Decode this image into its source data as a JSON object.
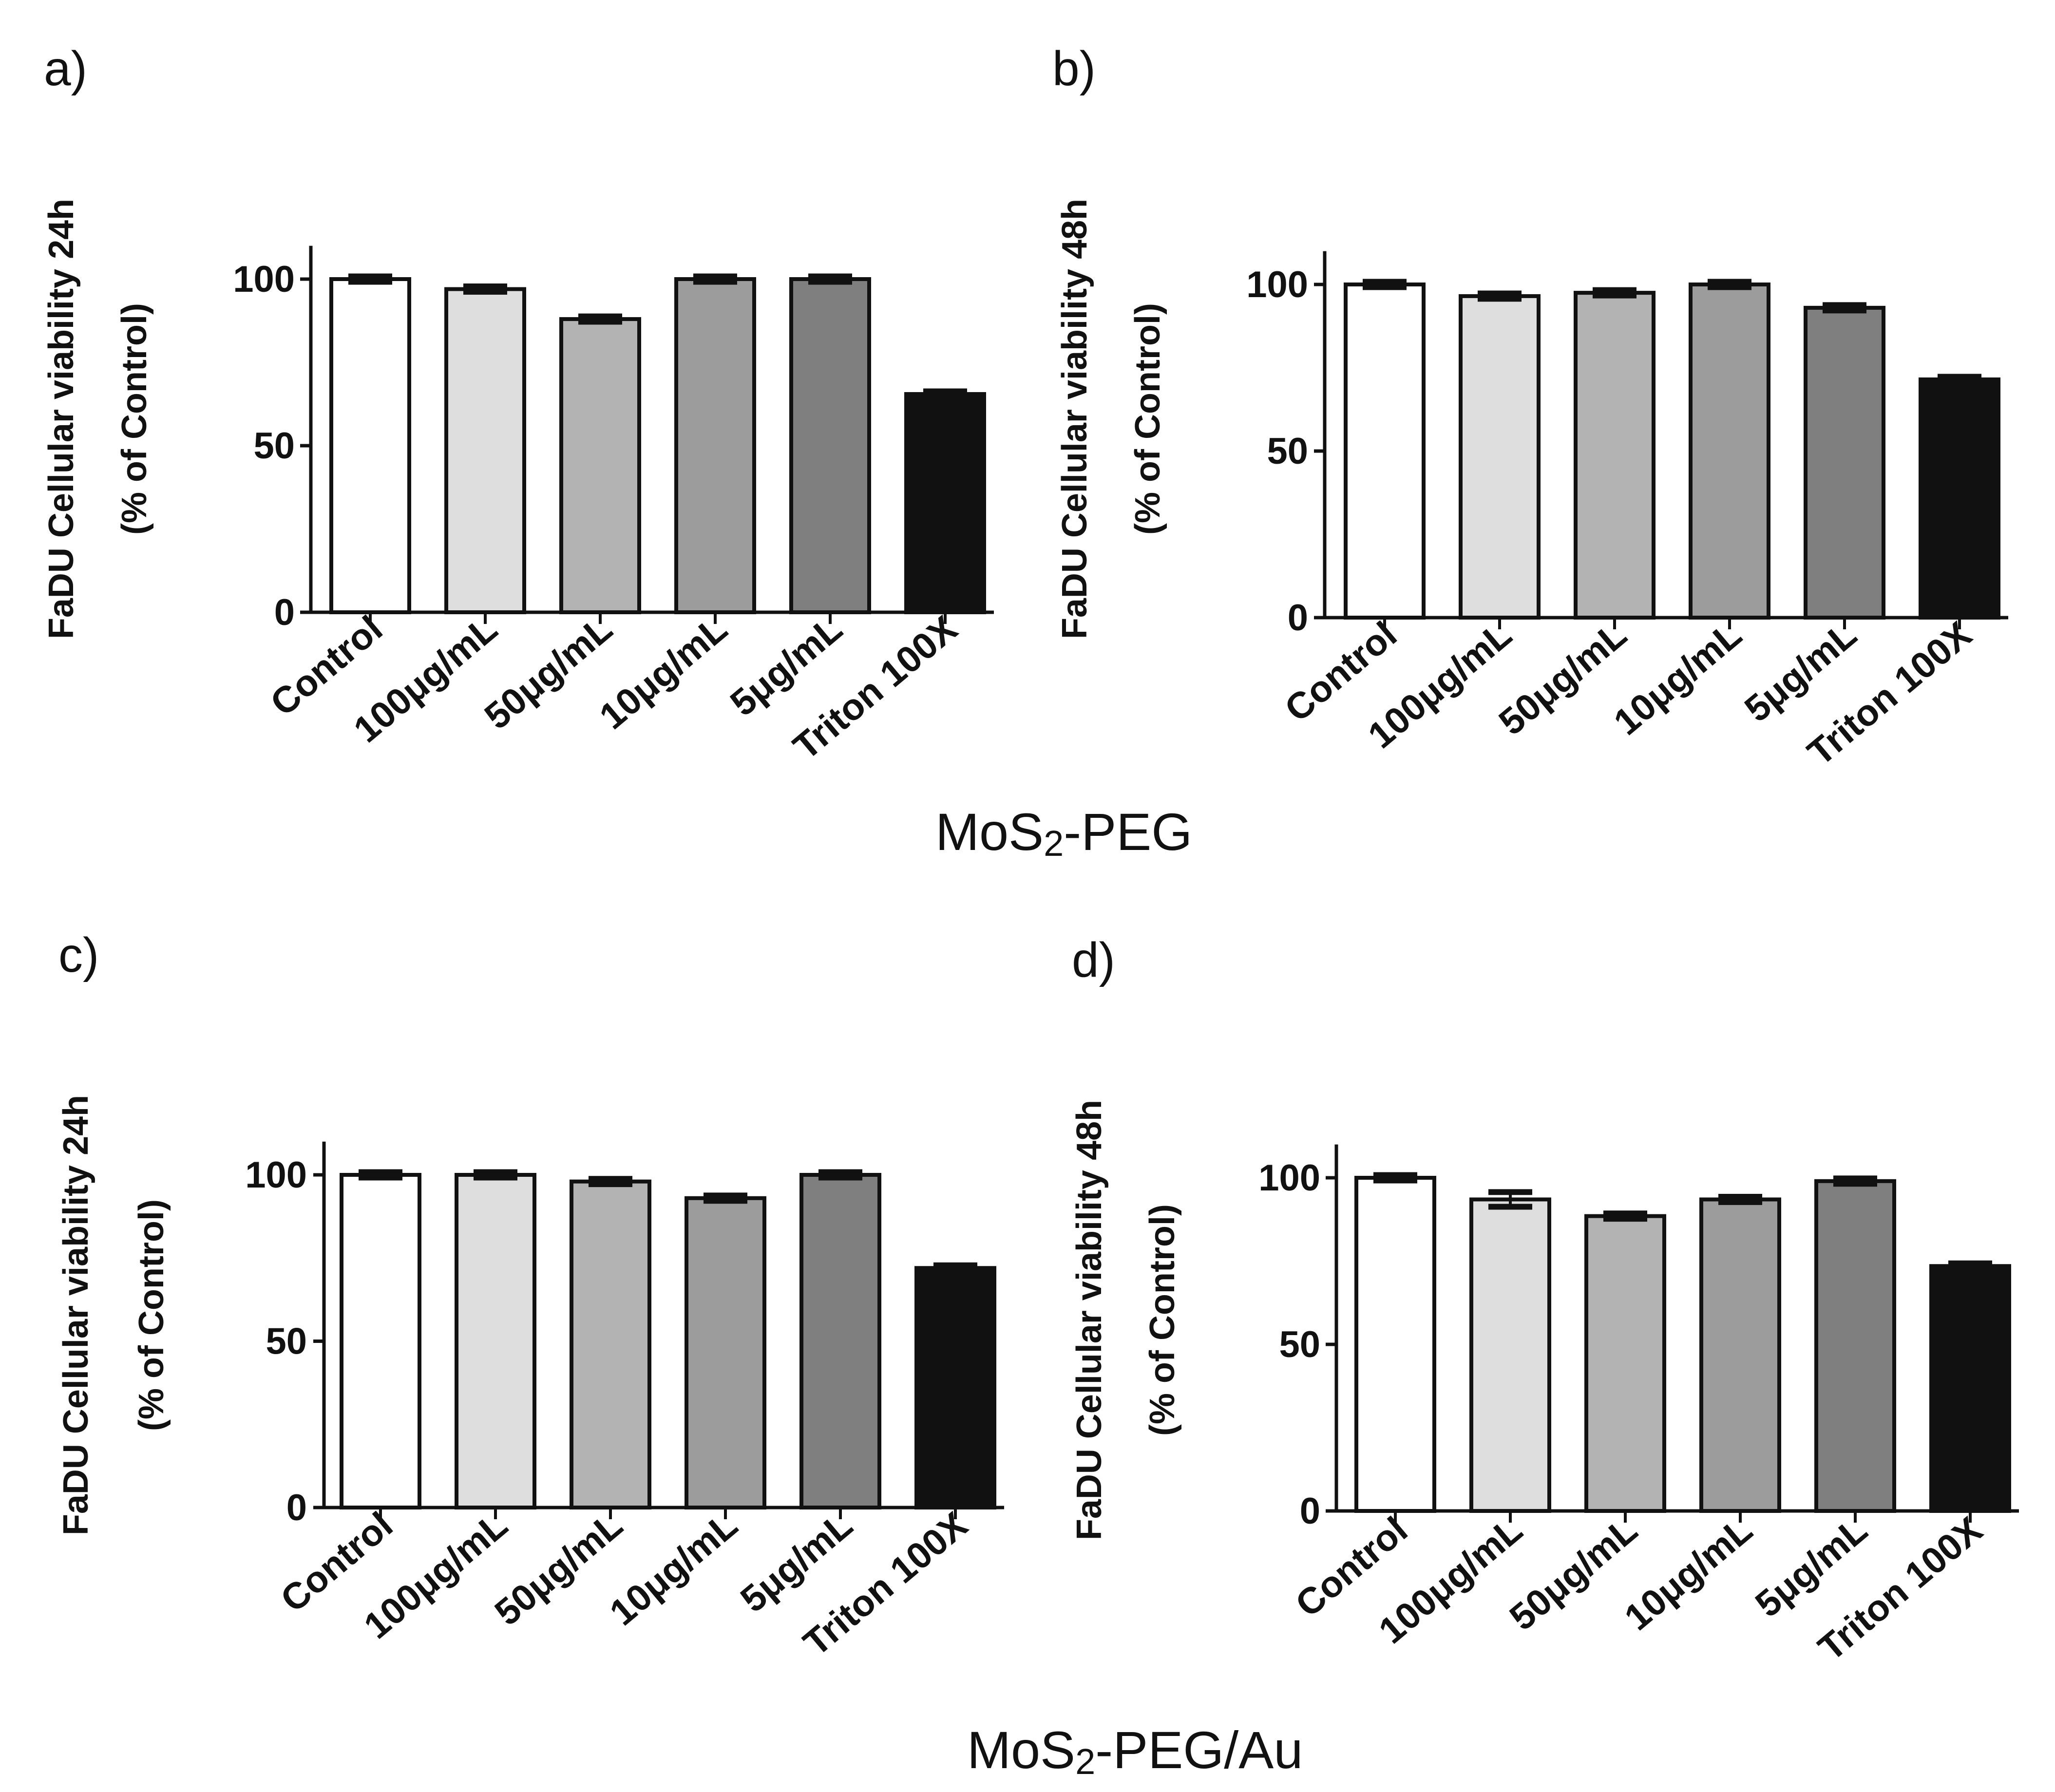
{
  "figure": {
    "group_labels": [
      {
        "main": "MoS",
        "sub": "2",
        "rest": "-PEG"
      },
      {
        "main": "MoS",
        "sub": "2",
        "rest": "-PEG/Au"
      }
    ]
  },
  "colors": {
    "bars": [
      "#ffffff",
      "#dedede",
      "#b3b3b3",
      "#9c9c9c",
      "#7f7f7f",
      "#111111"
    ],
    "stroke": "#111111"
  },
  "chart_data": [
    {
      "panel": "a)",
      "type": "bar",
      "title": "",
      "xlabel": "",
      "ylabel_lines": [
        "FaDU Cellular viability 24h",
        "(% of Control)"
      ],
      "categories": [
        "Control",
        "100μg/mL",
        "50μg/mL",
        "10μg/mL",
        "5μg/mL",
        "Triton 100X"
      ],
      "values": [
        100,
        97,
        88,
        100,
        100,
        65.5
      ],
      "errors": [
        0.8,
        0.8,
        0.8,
        0.8,
        0.8,
        0.8
      ],
      "yticks": [
        0,
        50,
        100
      ],
      "ylim": [
        0,
        110
      ]
    },
    {
      "panel": "b)",
      "type": "bar",
      "title": "",
      "xlabel": "",
      "ylabel_lines": [
        "FaDU Cellular viability 48h",
        "(% of Control)"
      ],
      "categories": [
        "Control",
        "100μg/mL",
        "50μg/mL",
        "10μg/mL",
        "5μg/mL",
        "Triton 100X"
      ],
      "values": [
        100,
        96.5,
        97.5,
        100,
        93,
        71.5
      ],
      "errors": [
        0.8,
        0.8,
        0.8,
        0.8,
        0.8,
        0.8
      ],
      "yticks": [
        0,
        50,
        100
      ],
      "ylim": [
        0,
        110
      ]
    },
    {
      "panel": "c)",
      "type": "bar",
      "title": "",
      "xlabel": "",
      "ylabel_lines": [
        "FaDU Cellular viability 24h",
        "(% of Control)"
      ],
      "categories": [
        "Control",
        "100μg/mL",
        "50μg/mL",
        "10μg/mL",
        "5μg/mL",
        "Triton 100X"
      ],
      "values": [
        100,
        100,
        98,
        93,
        100,
        72
      ],
      "errors": [
        0.8,
        0.8,
        0.8,
        0.8,
        0.8,
        0.8
      ],
      "yticks": [
        0,
        50,
        100
      ],
      "ylim": [
        0,
        110
      ]
    },
    {
      "panel": "d)",
      "type": "bar",
      "title": "",
      "xlabel": "",
      "ylabel_lines": [
        "FaDU Cellular viability 48h",
        "(% of Control)"
      ],
      "categories": [
        "Control",
        "100μg/mL",
        "50μg/mL",
        "10μg/mL",
        "5μg/mL",
        "Triton 100X"
      ],
      "values": [
        100,
        93.5,
        88.5,
        93.5,
        99,
        73.5
      ],
      "errors": [
        0.8,
        2.2,
        0.8,
        0.8,
        0.8,
        0.8
      ],
      "yticks": [
        0,
        50,
        100
      ],
      "ylim": [
        0,
        110
      ]
    }
  ]
}
